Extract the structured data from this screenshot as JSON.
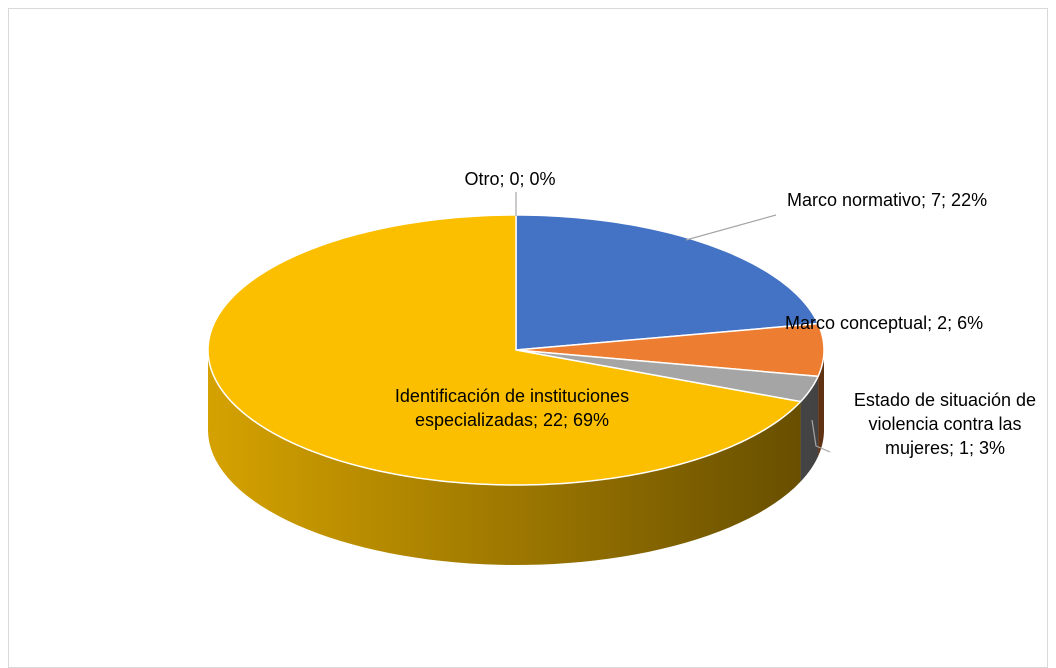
{
  "chart_data": {
    "type": "pie3d",
    "values": [
      7,
      2,
      1,
      22,
      0
    ],
    "value_labels": [
      "Marco normativo; 7; 22%",
      "Marco conceptual; 2; 6%",
      "Estado de situación de violencia contra las mujeres; 1; 3%",
      "Identificación de instituciones especializadas; 22; 69%",
      "Otro; 0; 0%"
    ],
    "colors": [
      "#4472c4",
      "#ed7d31",
      "#a5a5a5",
      "#fbbf00",
      "#5b9bd5"
    ]
  }
}
